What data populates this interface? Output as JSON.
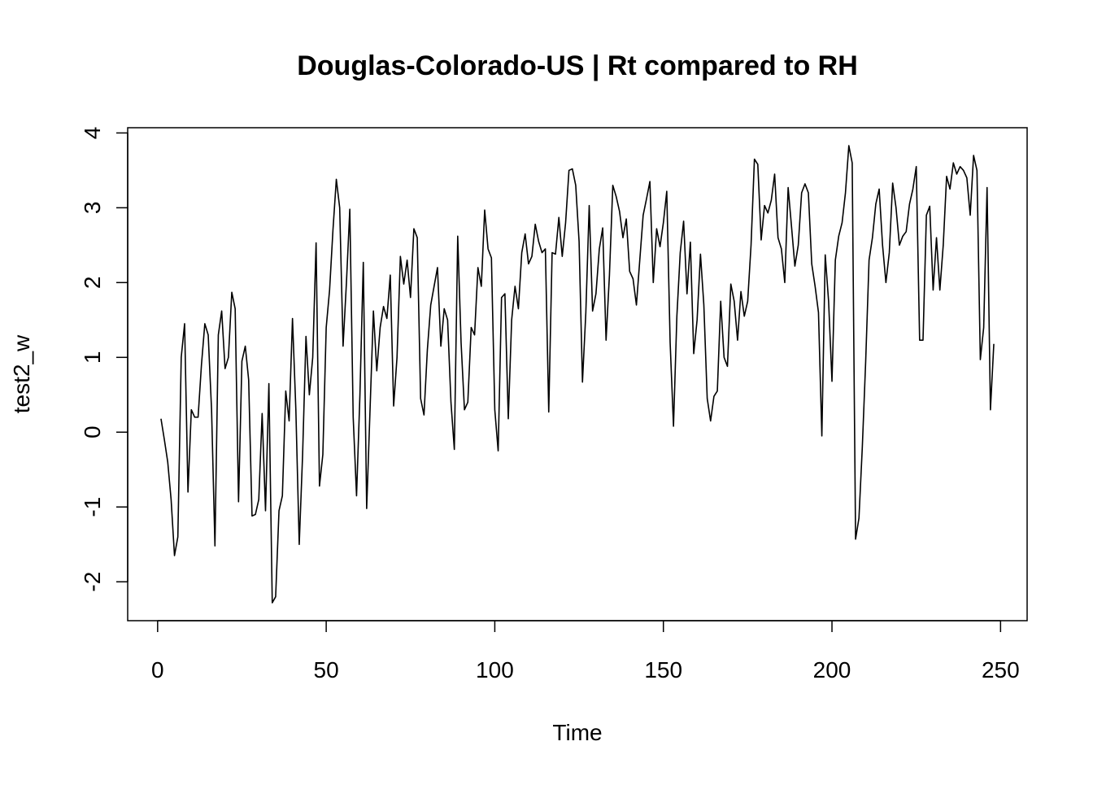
{
  "chart_data": {
    "type": "line",
    "title": "Douglas-Colorado-US | Rt compared to RH",
    "x_label": "Time",
    "y_label": "test2_w",
    "color": "#000000",
    "x": [
      1,
      2,
      3,
      4,
      5,
      6,
      7,
      8,
      9,
      10,
      11,
      12,
      13,
      14,
      15,
      16,
      17,
      18,
      19,
      20,
      21,
      22,
      23,
      24,
      25,
      26,
      27,
      28,
      29,
      30,
      31,
      32,
      33,
      34,
      35,
      36,
      37,
      38,
      39,
      40,
      41,
      42,
      43,
      44,
      45,
      46,
      47,
      48,
      49,
      50,
      51,
      52,
      53,
      54,
      55,
      56,
      57,
      58,
      59,
      60,
      61,
      62,
      63,
      64,
      65,
      66,
      67,
      68,
      69,
      70,
      71,
      72,
      73,
      74,
      75,
      76,
      77,
      78,
      79,
      80,
      81,
      82,
      83,
      84,
      85,
      86,
      87,
      88,
      89,
      90,
      91,
      92,
      93,
      94,
      95,
      96,
      97,
      98,
      99,
      100,
      101,
      102,
      103,
      104,
      105,
      106,
      107,
      108,
      109,
      110,
      111,
      112,
      113,
      114,
      115,
      116,
      117,
      118,
      119,
      120,
      121,
      122,
      123,
      124,
      125,
      126,
      127,
      128,
      129,
      130,
      131,
      132,
      133,
      134,
      135,
      136,
      137,
      138,
      139,
      140,
      141,
      142,
      143,
      144,
      145,
      146,
      147,
      148,
      149,
      150,
      151,
      152,
      153,
      154,
      155,
      156,
      157,
      158,
      159,
      160,
      161,
      162,
      163,
      164,
      165,
      166,
      167,
      168,
      169,
      170,
      171,
      172,
      173,
      174,
      175,
      176,
      177,
      178,
      179,
      180,
      181,
      182,
      183,
      184,
      185,
      186,
      187,
      188,
      189,
      190,
      191,
      192,
      193,
      194,
      195,
      196,
      197,
      198,
      199,
      200,
      201,
      202,
      203,
      204,
      205,
      206,
      207,
      208,
      209,
      210,
      211,
      212,
      213,
      214,
      215,
      216,
      217,
      218,
      219,
      220,
      221,
      222,
      223,
      224,
      225,
      226,
      227,
      228,
      229,
      230,
      231,
      232,
      233,
      234,
      235,
      236,
      237,
      238,
      239,
      240,
      241,
      242,
      243,
      244,
      245,
      246,
      247,
      248
    ],
    "values": [
      0.18,
      -0.1,
      -0.4,
      -0.9,
      -1.65,
      -1.4,
      1.0,
      1.45,
      -0.8,
      0.3,
      0.2,
      0.2,
      0.9,
      1.45,
      1.3,
      0.3,
      -1.52,
      1.3,
      1.62,
      0.85,
      1.0,
      1.87,
      1.65,
      -0.93,
      0.95,
      1.15,
      0.7,
      -1.12,
      -1.1,
      -0.9,
      0.25,
      -1.05,
      0.65,
      -2.28,
      -2.2,
      -1.05,
      -0.85,
      0.55,
      0.15,
      1.52,
      0.3,
      -1.5,
      -0.3,
      1.28,
      0.5,
      1.0,
      2.53,
      -0.72,
      -0.3,
      1.4,
      1.9,
      2.7,
      3.38,
      3.0,
      1.15,
      2.0,
      2.98,
      0.2,
      -0.85,
      0.5,
      2.27,
      -1.02,
      0.3,
      1.62,
      0.82,
      1.4,
      1.68,
      1.52,
      2.1,
      0.35,
      1.0,
      2.35,
      1.98,
      2.3,
      1.8,
      2.72,
      2.6,
      0.45,
      0.23,
      1.1,
      1.7,
      1.95,
      2.2,
      1.15,
      1.65,
      1.5,
      0.4,
      -0.23,
      2.62,
      1.2,
      0.3,
      0.4,
      1.4,
      1.3,
      2.2,
      1.95,
      2.97,
      2.45,
      2.33,
      0.3,
      -0.25,
      1.8,
      1.85,
      0.18,
      1.5,
      1.95,
      1.65,
      2.4,
      2.65,
      2.25,
      2.35,
      2.78,
      2.55,
      2.4,
      2.45,
      0.27,
      2.4,
      2.38,
      2.87,
      2.35,
      2.8,
      3.5,
      3.52,
      3.3,
      2.55,
      0.67,
      1.6,
      3.03,
      1.62,
      1.85,
      2.45,
      2.73,
      1.23,
      2.1,
      3.3,
      3.15,
      2.95,
      2.6,
      2.85,
      2.15,
      2.05,
      1.7,
      2.3,
      2.9,
      3.12,
      3.35,
      2.0,
      2.72,
      2.48,
      2.8,
      3.22,
      1.2,
      0.08,
      1.55,
      2.4,
      2.82,
      1.85,
      2.54,
      1.05,
      1.5,
      2.38,
      1.7,
      0.45,
      0.15,
      0.48,
      0.55,
      1.75,
      1.0,
      0.88,
      1.98,
      1.75,
      1.23,
      1.88,
      1.55,
      1.75,
      2.5,
      3.65,
      3.58,
      2.57,
      3.03,
      2.93,
      3.1,
      3.45,
      2.6,
      2.45,
      2.0,
      3.27,
      2.75,
      2.22,
      2.5,
      3.2,
      3.32,
      3.2,
      2.25,
      1.95,
      1.6,
      -0.05,
      2.37,
      1.75,
      0.68,
      2.3,
      2.62,
      2.8,
      3.2,
      3.83,
      3.6,
      -1.43,
      -1.15,
      -0.2,
      0.95,
      2.3,
      2.6,
      3.05,
      3.25,
      2.5,
      2.0,
      2.4,
      3.33,
      3.0,
      2.5,
      2.62,
      2.68,
      3.05,
      3.25,
      3.55,
      1.23,
      1.23,
      2.9,
      3.02,
      1.9,
      2.6,
      1.9,
      2.5,
      3.42,
      3.25,
      3.6,
      3.45,
      3.55,
      3.5,
      3.4,
      2.9,
      3.7,
      3.5,
      0.97,
      1.4,
      3.27,
      0.3,
      1.18
    ],
    "xlim": [
      -8.88,
      257.88
    ],
    "xticks": [
      0,
      50,
      100,
      150,
      200,
      250
    ],
    "ylim": [
      -2.52,
      4.07
    ],
    "yticks": [
      -2,
      -1,
      0,
      1,
      2,
      3,
      4
    ]
  }
}
